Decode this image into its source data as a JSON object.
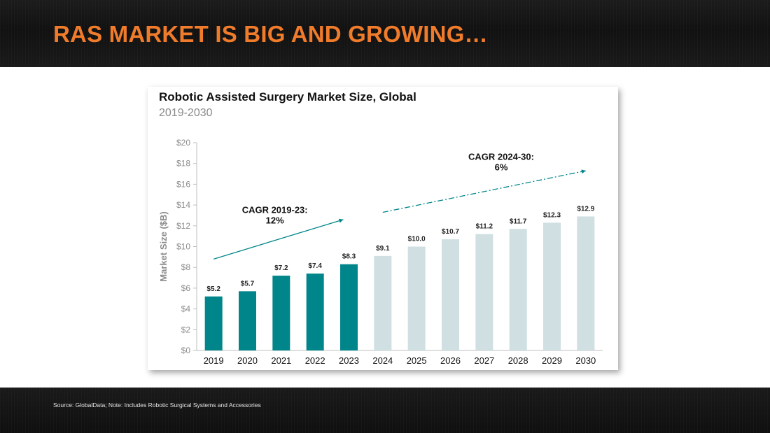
{
  "header": {
    "title": "RAS MARKET IS BIG AND GROWING…"
  },
  "footer": {
    "note": "Source: GlobalData; Note: Includes Robotic Surgical Systems and Accessories"
  },
  "colors": {
    "accent": "#f07c2b",
    "historical": "#00868a",
    "forecast": "#cfdfe2",
    "axis": "#bfbfbf"
  },
  "chart_data": {
    "type": "bar",
    "title": "Robotic Assisted Surgery Market Size, Global",
    "subtitle": "2019-2030",
    "xlabel": "",
    "ylabel": "Market Size ($B)",
    "ylim": [
      0,
      20
    ],
    "yticks": [
      0,
      2,
      4,
      6,
      8,
      10,
      12,
      14,
      16,
      18,
      20
    ],
    "ytick_labels": [
      "$0",
      "$2",
      "$4",
      "$6",
      "$8",
      "$10",
      "$12",
      "$14",
      "$16",
      "$18",
      "$20"
    ],
    "grid": false,
    "categories": [
      "2019",
      "2020",
      "2021",
      "2022",
      "2023",
      "2024",
      "2025",
      "2026",
      "2027",
      "2028",
      "2029",
      "2030"
    ],
    "values": [
      5.2,
      5.7,
      7.2,
      7.4,
      8.3,
      9.1,
      10.0,
      10.7,
      11.2,
      11.7,
      12.3,
      12.9
    ],
    "data_labels": [
      "$5.2",
      "$5.7",
      "$7.2",
      "$7.4",
      "$8.3",
      "$9.1",
      "$10.0",
      "$10.7",
      "$11.2",
      "$11.7",
      "$12.3",
      "$12.9"
    ],
    "series_split": {
      "historical_count": 5
    },
    "annotations": [
      {
        "line1": "CAGR 2019-23:",
        "line2": "12%",
        "from": [
          2019,
          8.8
        ],
        "to": [
          2023,
          12.6
        ],
        "style": "solid"
      },
      {
        "line1": "CAGR 2024-30:",
        "line2": "6%",
        "from": [
          2024,
          13.3
        ],
        "to": [
          2030,
          17.3
        ],
        "style": "dash-dot"
      }
    ]
  }
}
